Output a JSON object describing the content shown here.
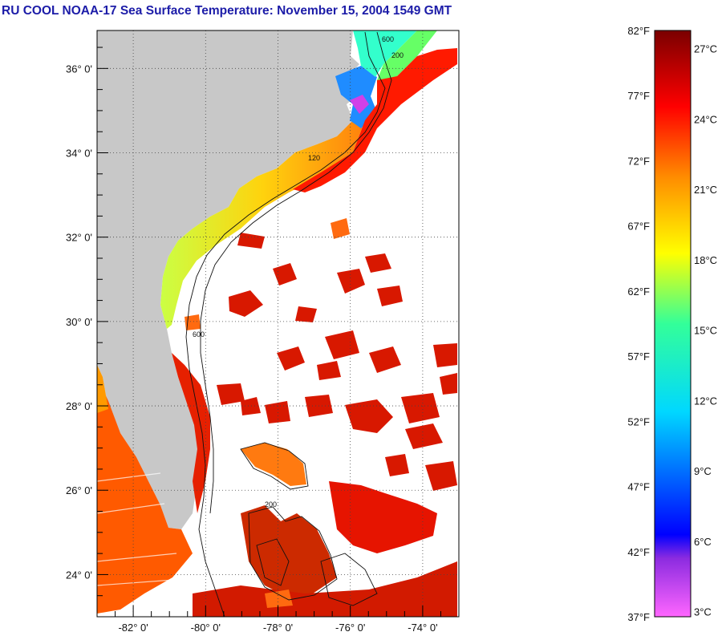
{
  "title": "RU COOL  NOAA-17  Sea Surface Temperature:  November 15, 2004 1549 GMT",
  "map": {
    "lon_range": [
      -83.0,
      -73.0
    ],
    "lat_range": [
      23.0,
      36.9
    ],
    "lat_ticks": [
      {
        "value": 24,
        "label": "24° 0'"
      },
      {
        "value": 26,
        "label": "26° 0'"
      },
      {
        "value": 28,
        "label": "28° 0'"
      },
      {
        "value": 30,
        "label": "30° 0'"
      },
      {
        "value": 32,
        "label": "32° 0'"
      },
      {
        "value": 34,
        "label": "34° 0'"
      },
      {
        "value": 36,
        "label": "36° 0'"
      }
    ],
    "lon_ticks": [
      {
        "value": -82,
        "label": "-82° 0'"
      },
      {
        "value": -80,
        "label": "-80° 0'"
      },
      {
        "value": -78,
        "label": "-78° 0'"
      },
      {
        "value": -76,
        "label": "-76° 0'"
      },
      {
        "value": -74,
        "label": "-74° 0'"
      }
    ],
    "grid": "dotted",
    "land_color": "#c8c8c8",
    "cloud_color": "#ffffff",
    "contour_labels": [
      "600",
      "200",
      "120",
      "600",
      "200"
    ]
  },
  "colorbar": {
    "f_labels": [
      {
        "value": 82,
        "label": "82°F"
      },
      {
        "value": 77,
        "label": "77°F"
      },
      {
        "value": 72,
        "label": "72°F"
      },
      {
        "value": 67,
        "label": "67°F"
      },
      {
        "value": 62,
        "label": "62°F"
      },
      {
        "value": 57,
        "label": "57°F"
      },
      {
        "value": 52,
        "label": "52°F"
      },
      {
        "value": 47,
        "label": "47°F"
      },
      {
        "value": 42,
        "label": "42°F"
      },
      {
        "value": 37,
        "label": "37°F"
      }
    ],
    "c_labels": [
      {
        "value": 27,
        "label": "27°C"
      },
      {
        "value": 24,
        "label": "24°C"
      },
      {
        "value": 21,
        "label": "21°C"
      },
      {
        "value": 18,
        "label": "18°C"
      },
      {
        "value": 15,
        "label": "15°C"
      },
      {
        "value": 12,
        "label": "12°C"
      },
      {
        "value": 9,
        "label": "9°C"
      },
      {
        "value": 6,
        "label": "6°C"
      },
      {
        "value": 3,
        "label": "3°C"
      }
    ],
    "f_range": [
      37,
      82
    ],
    "stops": [
      "#ff66ff",
      "#8b2be0",
      "#0000ff",
      "#00c8ff",
      "#33ff99",
      "#ffff00",
      "#ff8800",
      "#ff0000",
      "#7a0000"
    ]
  }
}
